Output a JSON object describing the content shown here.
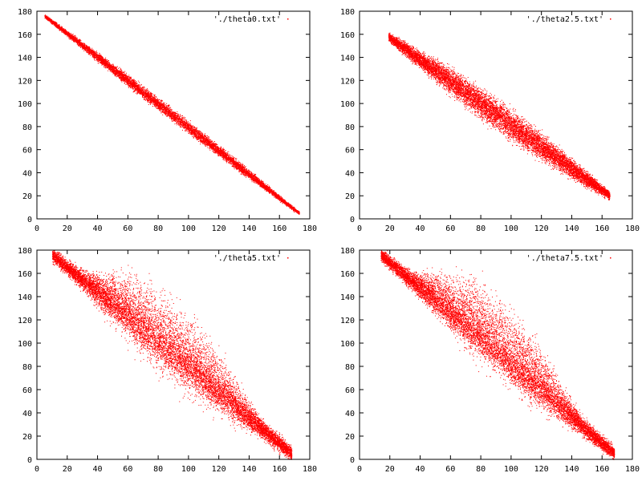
{
  "chart_data": [
    {
      "type": "scatter",
      "legend": "'./theta0.txt'",
      "legend_position": "top-right",
      "color": "#ff0000",
      "xlim": [
        0,
        180
      ],
      "ylim": [
        0,
        180
      ],
      "xticks": [
        "0",
        "20",
        "40",
        "60",
        "80",
        "100",
        "120",
        "140",
        "160",
        "180"
      ],
      "yticks": [
        "0",
        "20",
        "40",
        "60",
        "80",
        "100",
        "120",
        "140",
        "160",
        "180"
      ],
      "grid": false,
      "point_cloud": {
        "x_range": [
          5,
          173
        ],
        "y_start": 176,
        "y_end": 5,
        "band_width": 8,
        "secondary_band_offset": 0,
        "n_points": 9000
      }
    },
    {
      "type": "scatter",
      "legend": "'./theta2.5.txt'",
      "legend_position": "top-right",
      "color": "#ff0000",
      "xlim": [
        0,
        180
      ],
      "ylim": [
        0,
        180
      ],
      "xticks": [
        "0",
        "20",
        "40",
        "60",
        "80",
        "100",
        "120",
        "140",
        "160",
        "180"
      ],
      "yticks": [
        "0",
        "20",
        "40",
        "60",
        "80",
        "100",
        "120",
        "140",
        "160",
        "180"
      ],
      "grid": false,
      "point_cloud": {
        "x_range": [
          19,
          165
        ],
        "y_start": 158,
        "y_end": 20,
        "band_width": 20,
        "secondary_band_offset": 0,
        "n_points": 11000
      }
    },
    {
      "type": "scatter",
      "legend": "'./theta5.txt'",
      "legend_position": "top-right",
      "color": "#ff0000",
      "xlim": [
        0,
        180
      ],
      "ylim": [
        0,
        180
      ],
      "xticks": [
        "0",
        "20",
        "40",
        "60",
        "80",
        "100",
        "120",
        "140",
        "160",
        "180"
      ],
      "yticks": [
        "0",
        "20",
        "40",
        "60",
        "80",
        "100",
        "120",
        "140",
        "160",
        "180"
      ],
      "grid": false,
      "point_cloud": {
        "x_range": [
          10,
          168
        ],
        "y_start": 176,
        "y_end": 5,
        "band_width": 24,
        "secondary_band_offset": 22,
        "n_points": 12000
      }
    },
    {
      "type": "scatter",
      "legend": "'./theta7.5.txt'",
      "legend_position": "top-right",
      "color": "#ff0000",
      "xlim": [
        0,
        180
      ],
      "ylim": [
        0,
        180
      ],
      "xticks": [
        "0",
        "20",
        "40",
        "60",
        "80",
        "100",
        "120",
        "140",
        "160",
        "180"
      ],
      "yticks": [
        "0",
        "20",
        "40",
        "60",
        "80",
        "100",
        "120",
        "140",
        "160",
        "180"
      ],
      "grid": false,
      "point_cloud": {
        "x_range": [
          14,
          168
        ],
        "y_start": 176,
        "y_end": 5,
        "band_width": 22,
        "secondary_band_offset": 30,
        "n_points": 12000
      }
    }
  ]
}
